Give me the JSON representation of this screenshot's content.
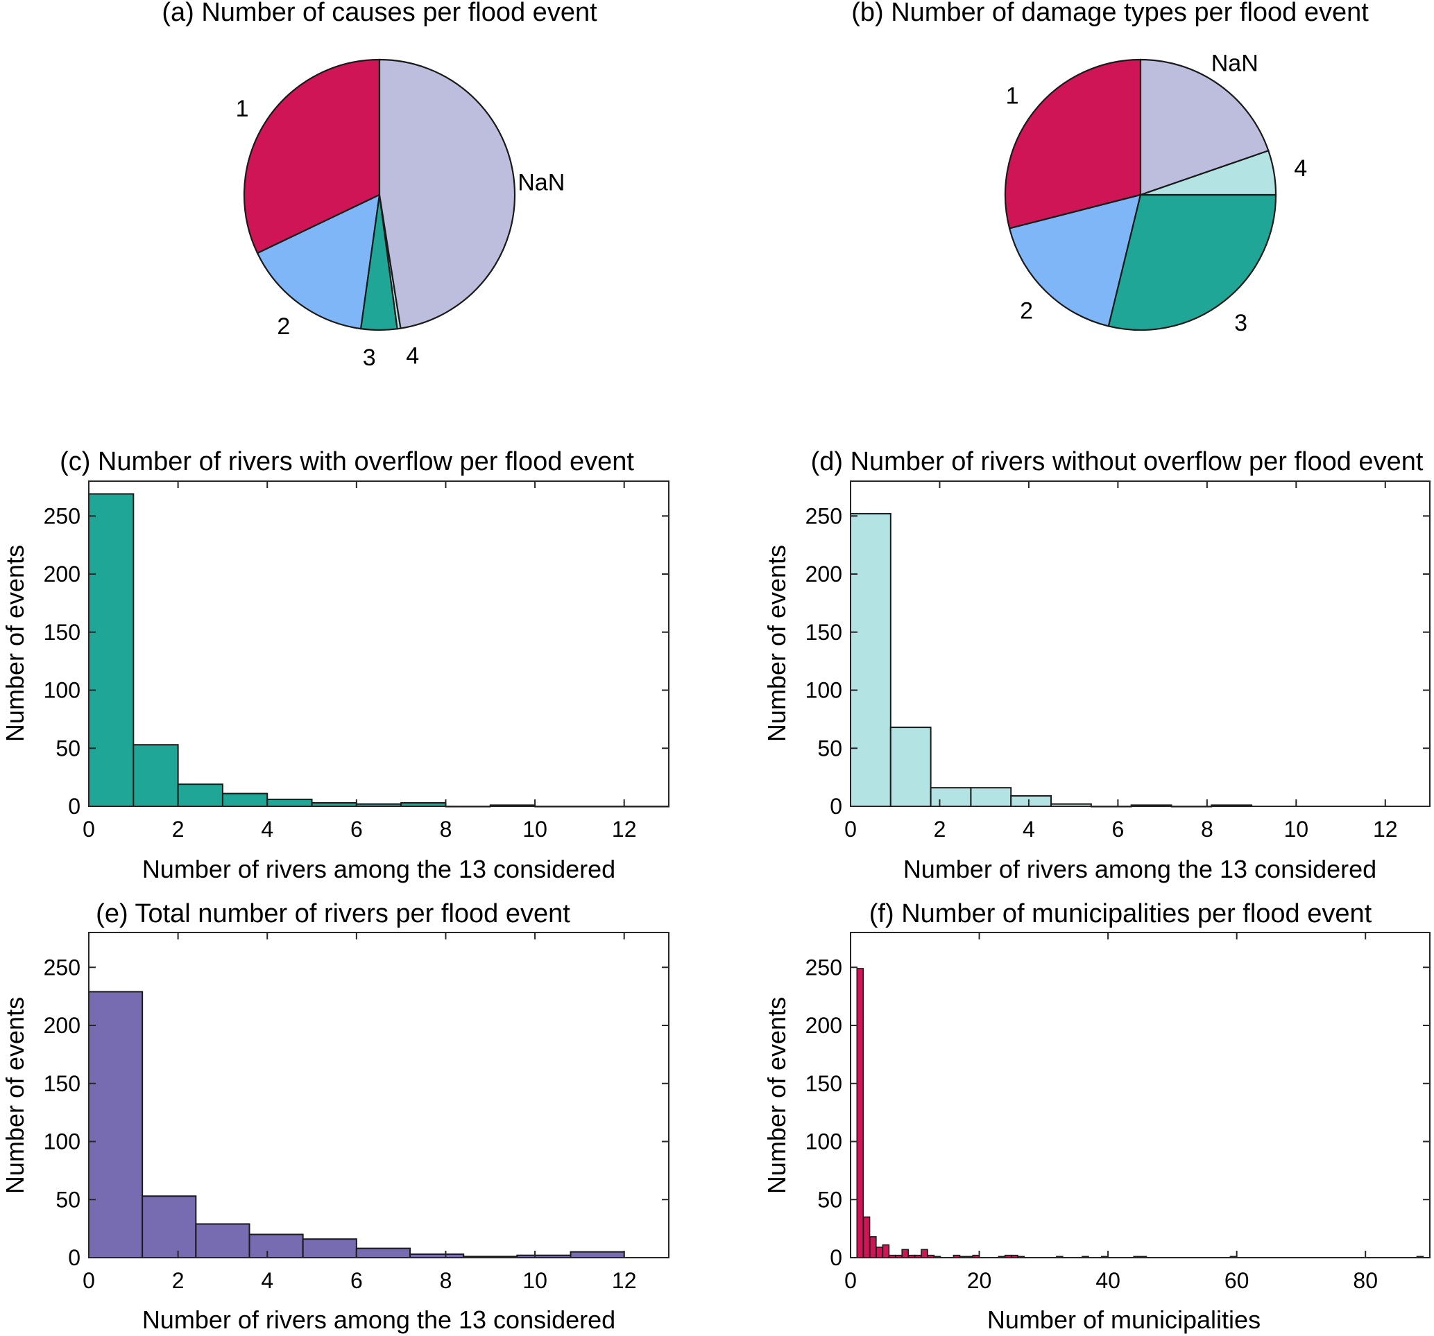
{
  "figure": {
    "panels": [
      "a",
      "b",
      "c",
      "d",
      "e",
      "f"
    ]
  },
  "colors": {
    "cat_1": "#D01556",
    "cat_2": "#7EB6F8",
    "cat_3": "#1FA697",
    "cat_4": "#B3E3E2",
    "cat_nan": "#BDBEDD",
    "hist_c": "#1FA697",
    "hist_d": "#B3E3E2",
    "hist_e": "#776BB2",
    "hist_f": "#D01556",
    "edge": "#1a1a1a"
  },
  "chart_data": [
    {
      "id": "a",
      "type": "pie",
      "title": "(a)  Number of causes per flood event",
      "labels": [
        "1",
        "2",
        "3",
        "4",
        "NaN"
      ],
      "values": [
        32.1,
        15.7,
        4.3,
        0.4,
        47.5
      ],
      "unit": "percent of events (estimated)",
      "start": "top",
      "direction": "counterclockwise"
    },
    {
      "id": "b",
      "type": "pie",
      "title": "(b)  Number of damage types per flood event",
      "labels": [
        "1",
        "2",
        "3",
        "4",
        "NaN"
      ],
      "values": [
        29.0,
        17.2,
        28.8,
        5.3,
        19.7
      ],
      "unit": "percent of events (estimated)",
      "start": "top",
      "direction": "counterclockwise"
    },
    {
      "id": "c",
      "type": "bar",
      "histogram": true,
      "title": "(c)  Number of rivers with overflow per flood event",
      "xlabel": "Number of rivers among the 13 considered",
      "ylabel": "Number of events",
      "bin_edges": [
        0,
        1,
        2,
        3,
        4,
        5,
        6,
        7,
        8,
        9,
        10,
        11,
        12,
        13
      ],
      "values": [
        269,
        53,
        19,
        11,
        6,
        3,
        2,
        3,
        0,
        1,
        0,
        0,
        0
      ],
      "xlim": [
        0,
        13
      ],
      "ylim": [
        0,
        280
      ],
      "xticks": [
        0,
        2,
        4,
        6,
        8,
        10,
        12
      ],
      "yticks": [
        0,
        50,
        100,
        150,
        200,
        250
      ],
      "grid": false
    },
    {
      "id": "d",
      "type": "bar",
      "histogram": true,
      "title": "(d) Number of rivers without overflow per flood event",
      "xlabel": "Number of rivers among the 13 considered",
      "ylabel": "Number of events",
      "bin_edges": [
        0,
        0.9,
        1.8,
        2.7,
        3.6,
        4.5,
        5.4,
        6.3,
        7.2,
        8.1,
        9.0
      ],
      "values": [
        252,
        68,
        16,
        16,
        9,
        2,
        0,
        1,
        0,
        1
      ],
      "xlim": [
        0,
        13
      ],
      "ylim": [
        0,
        280
      ],
      "xticks": [
        0,
        2,
        4,
        6,
        8,
        10,
        12
      ],
      "yticks": [
        0,
        50,
        100,
        150,
        200,
        250
      ],
      "grid": false
    },
    {
      "id": "e",
      "type": "bar",
      "histogram": true,
      "title": "(e) Total number of rivers per flood event",
      "xlabel": "Number of rivers among the 13 considered",
      "ylabel": "Number of events",
      "bin_edges": [
        0,
        1.2,
        2.4,
        3.6,
        4.8,
        6.0,
        7.2,
        8.4,
        9.6,
        10.8,
        12.0
      ],
      "values": [
        229,
        53,
        29,
        20,
        16,
        8,
        3,
        1,
        2,
        5
      ],
      "xlim": [
        0,
        13
      ],
      "ylim": [
        0,
        280
      ],
      "xticks": [
        0,
        2,
        4,
        6,
        8,
        10,
        12
      ],
      "yticks": [
        0,
        50,
        100,
        150,
        200,
        250
      ],
      "grid": false
    },
    {
      "id": "f",
      "type": "bar",
      "histogram": true,
      "title": "(f)  Number of municipalities per flood event",
      "xlabel": "Number of municipalities",
      "ylabel": "Number of events",
      "bin_start": 1,
      "bin_width": 1,
      "bins": [
        {
          "x": 1,
          "count": 249
        },
        {
          "x": 2,
          "count": 35
        },
        {
          "x": 3,
          "count": 18
        },
        {
          "x": 4,
          "count": 9
        },
        {
          "x": 5,
          "count": 11
        },
        {
          "x": 6,
          "count": 2
        },
        {
          "x": 7,
          "count": 2
        },
        {
          "x": 8,
          "count": 7
        },
        {
          "x": 9,
          "count": 2
        },
        {
          "x": 10,
          "count": 2
        },
        {
          "x": 11,
          "count": 7
        },
        {
          "x": 12,
          "count": 2
        },
        {
          "x": 13,
          "count": 1
        },
        {
          "x": 16,
          "count": 2
        },
        {
          "x": 17,
          "count": 1
        },
        {
          "x": 18,
          "count": 1
        },
        {
          "x": 19,
          "count": 2
        },
        {
          "x": 23,
          "count": 1
        },
        {
          "x": 24,
          "count": 2
        },
        {
          "x": 25,
          "count": 2
        },
        {
          "x": 26,
          "count": 1
        },
        {
          "x": 32,
          "count": 1
        },
        {
          "x": 36,
          "count": 1
        },
        {
          "x": 39,
          "count": 1
        },
        {
          "x": 44,
          "count": 1
        },
        {
          "x": 45,
          "count": 1
        },
        {
          "x": 59,
          "count": 1
        },
        {
          "x": 88,
          "count": 1
        }
      ],
      "xlim": [
        0,
        90
      ],
      "ylim": [
        0,
        280
      ],
      "xticks": [
        0,
        20,
        40,
        60,
        80
      ],
      "yticks": [
        0,
        50,
        100,
        150,
        200,
        250
      ],
      "grid": false
    }
  ]
}
